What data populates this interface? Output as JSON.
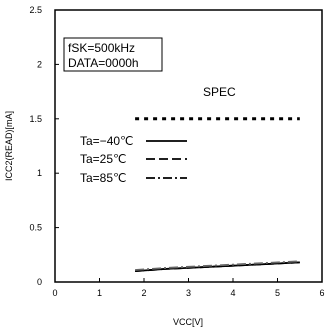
{
  "chart_data": {
    "type": "line",
    "xlabel": "VCC[V]",
    "ylabel": "ICC2(READ)[mA]",
    "xlim": [
      0,
      6
    ],
    "ylim": [
      0,
      2.5
    ],
    "x_ticks": [
      "0",
      "1",
      "2",
      "3",
      "4",
      "5",
      "6"
    ],
    "y_ticks": [
      "0",
      "0.5",
      "1",
      "1.5",
      "2",
      "2.5"
    ],
    "grid": false,
    "legend_placement": "center-left",
    "conditions": [
      "fSK=500kHz",
      "DATA=0000h"
    ],
    "spec_label": "SPEC",
    "series": [
      {
        "name": "Ta=−40℃",
        "style": "solid",
        "x": [
          1.8,
          2.5,
          3.0,
          4.0,
          5.0,
          5.5
        ],
        "y": [
          0.1,
          0.12,
          0.13,
          0.15,
          0.17,
          0.18
        ]
      },
      {
        "name": "Ta=25℃",
        "style": "dashed",
        "x": [
          1.8,
          2.5,
          3.0,
          4.0,
          5.0,
          5.5
        ],
        "y": [
          0.1,
          0.12,
          0.13,
          0.15,
          0.17,
          0.18
        ]
      },
      {
        "name": "Ta=85℃",
        "style": "dashdot",
        "x": [
          1.8,
          2.5,
          3.0,
          4.0,
          5.0,
          5.5
        ],
        "y": [
          0.11,
          0.13,
          0.14,
          0.16,
          0.18,
          0.19
        ]
      },
      {
        "name": "SPEC",
        "style": "dotted",
        "x": [
          1.8,
          5.5
        ],
        "y": [
          1.5,
          1.5
        ]
      }
    ]
  }
}
